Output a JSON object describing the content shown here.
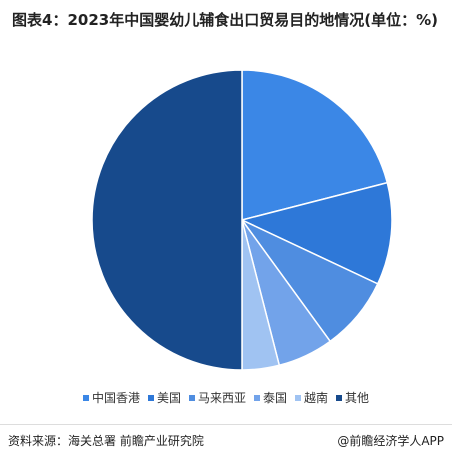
{
  "chart_data": {
    "type": "pie",
    "title": "图表4：2023年中国婴幼儿辅食出口贸易目的地情况(单位：%)",
    "categories": [
      "中国香港",
      "美国",
      "马来西亚",
      "泰国",
      "越南",
      "其他"
    ],
    "values": [
      21,
      11,
      8,
      6,
      4,
      50
    ],
    "colors": [
      "#3b87e6",
      "#2e78d8",
      "#4f8de0",
      "#72a3ea",
      "#a0c3f2",
      "#174a8c"
    ],
    "source": "资料来源：海关总署 前瞻产业研究院",
    "credit": "@前瞻经济学人APP"
  }
}
